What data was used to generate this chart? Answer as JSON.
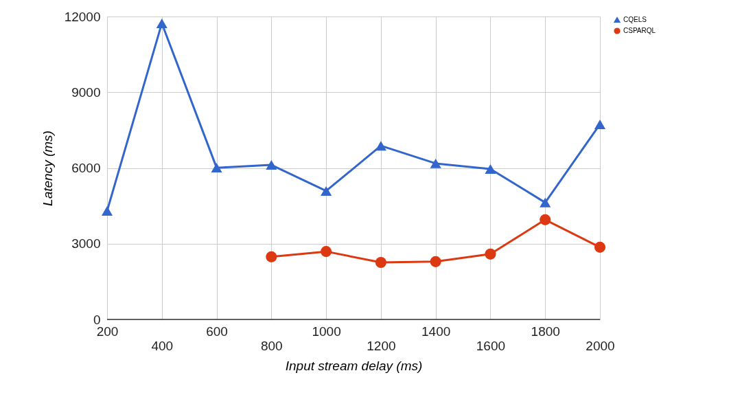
{
  "chart_data": {
    "type": "line",
    "xlabel": "Input stream delay (ms)",
    "ylabel": "Latency (ms)",
    "categories": [
      "200",
      "400",
      "600",
      "800",
      "1000",
      "1200",
      "1400",
      "1600",
      "1800",
      "2000"
    ],
    "series": [
      {
        "name": "CQELS",
        "color": "#3366cc",
        "marker": "triangle",
        "values": [
          4300,
          11730,
          6010,
          6120,
          5090,
          6880,
          6180,
          5960,
          4630,
          7730
        ]
      },
      {
        "name": "CSPARQL",
        "color": "#dc3912",
        "marker": "circle",
        "values": [
          null,
          null,
          null,
          2480,
          2690,
          2260,
          2290,
          2590,
          3950,
          2860
        ]
      }
    ],
    "ylim": [
      0,
      12000
    ],
    "yticks": [
      0,
      3000,
      6000,
      9000,
      12000
    ],
    "grid": true,
    "legend": "top right",
    "line_style": "solid"
  }
}
